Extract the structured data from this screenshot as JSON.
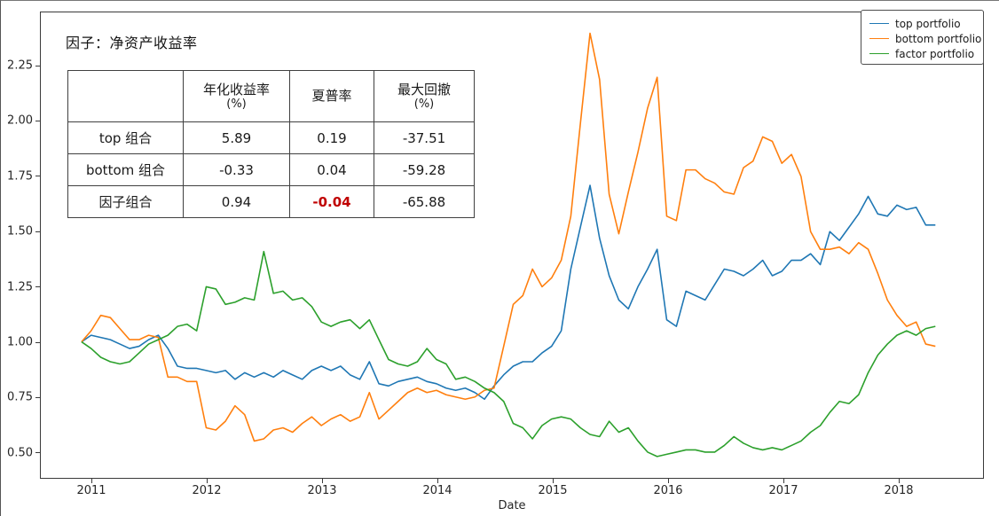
{
  "figure": {
    "title": "因子：净资产收益率",
    "colors": {
      "top_portfolio": "#1f77b4",
      "bottom_portfolio": "#ff7f0e",
      "factor_portfolio": "#2ca02c",
      "negative_highlight": "#c00000",
      "axis_text": "#262626",
      "spine": "#3a3a3a"
    }
  },
  "legend": {
    "items": [
      {
        "label": "top portfolio",
        "color": "#1f77b4"
      },
      {
        "label": "bottom portfolio",
        "color": "#ff7f0e"
      },
      {
        "label": "factor portfolio",
        "color": "#2ca02c"
      }
    ]
  },
  "stats_table": {
    "col_headers": [
      {
        "main": "",
        "sub": ""
      },
      {
        "main": "年化收益率",
        "sub": "(%)"
      },
      {
        "main": "夏普率",
        "sub": ""
      },
      {
        "main": "最大回撤",
        "sub": "(%)"
      }
    ],
    "rows": [
      {
        "label": "top 组合",
        "values": [
          "5.89",
          "0.19",
          "-37.51"
        ]
      },
      {
        "label": "bottom 组合",
        "values": [
          "-0.33",
          "0.04",
          "-59.28"
        ]
      },
      {
        "label": "因子组合",
        "values": [
          "0.94",
          "-0.04",
          "-65.88"
        ]
      }
    ],
    "highlight_cell": {
      "row": 2,
      "value_col": 1,
      "color": "#c00000"
    }
  },
  "chart_data": {
    "type": "line",
    "title": "因子：净资产收益率",
    "xlabel": "Date",
    "ylabel": "",
    "frequency": "monthly",
    "x_start": "2010-12",
    "x_end": "2018-05",
    "x_ticks": [
      "2011",
      "2012",
      "2013",
      "2014",
      "2015",
      "2016",
      "2017",
      "2018"
    ],
    "y_ticks": [
      "0.50",
      "0.75",
      "1.00",
      "1.25",
      "1.50",
      "1.75",
      "2.00",
      "2.25"
    ],
    "ylim": [
      0.384,
      2.496
    ],
    "grid": false,
    "legend_position": "upper right",
    "series": [
      {
        "name": "top portfolio",
        "color": "#1f77b4",
        "values": [
          1.0,
          1.03,
          1.02,
          1.01,
          0.99,
          0.97,
          0.98,
          1.01,
          1.03,
          0.97,
          0.89,
          0.88,
          0.88,
          0.87,
          0.86,
          0.87,
          0.83,
          0.86,
          0.84,
          0.86,
          0.84,
          0.87,
          0.85,
          0.83,
          0.87,
          0.89,
          0.87,
          0.89,
          0.85,
          0.83,
          0.91,
          0.81,
          0.8,
          0.82,
          0.83,
          0.84,
          0.82,
          0.81,
          0.79,
          0.78,
          0.79,
          0.77,
          0.74,
          0.8,
          0.85,
          0.89,
          0.91,
          0.91,
          0.95,
          0.98,
          1.05,
          1.33,
          1.52,
          1.71,
          1.47,
          1.3,
          1.19,
          1.15,
          1.25,
          1.33,
          1.42,
          1.1,
          1.07,
          1.23,
          1.21,
          1.19,
          1.26,
          1.33,
          1.32,
          1.3,
          1.33,
          1.37,
          1.3,
          1.32,
          1.37,
          1.37,
          1.4,
          1.35,
          1.5,
          1.46,
          1.52,
          1.58,
          1.66,
          1.58,
          1.57,
          1.62,
          1.6,
          1.61,
          1.53,
          1.53
        ]
      },
      {
        "name": "bottom portfolio",
        "color": "#ff7f0e",
        "values": [
          1.0,
          1.05,
          1.12,
          1.11,
          1.06,
          1.01,
          1.01,
          1.03,
          1.02,
          0.84,
          0.84,
          0.82,
          0.82,
          0.61,
          0.6,
          0.64,
          0.71,
          0.67,
          0.55,
          0.56,
          0.6,
          0.61,
          0.59,
          0.63,
          0.66,
          0.62,
          0.65,
          0.67,
          0.64,
          0.66,
          0.77,
          0.65,
          0.69,
          0.73,
          0.77,
          0.79,
          0.77,
          0.78,
          0.76,
          0.75,
          0.74,
          0.75,
          0.78,
          0.79,
          0.98,
          1.17,
          1.21,
          1.33,
          1.25,
          1.29,
          1.37,
          1.57,
          1.99,
          2.4,
          2.19,
          1.67,
          1.49,
          1.68,
          1.86,
          2.06,
          2.2,
          1.57,
          1.55,
          1.78,
          1.78,
          1.74,
          1.72,
          1.68,
          1.67,
          1.79,
          1.82,
          1.93,
          1.91,
          1.81,
          1.85,
          1.75,
          1.5,
          1.42,
          1.42,
          1.43,
          1.4,
          1.45,
          1.42,
          1.31,
          1.19,
          1.12,
          1.07,
          1.09,
          0.99,
          0.98
        ]
      },
      {
        "name": "factor portfolio",
        "color": "#2ca02c",
        "values": [
          1.0,
          0.97,
          0.93,
          0.91,
          0.9,
          0.91,
          0.95,
          0.99,
          1.01,
          1.03,
          1.07,
          1.08,
          1.05,
          1.25,
          1.24,
          1.17,
          1.18,
          1.2,
          1.19,
          1.41,
          1.22,
          1.23,
          1.19,
          1.2,
          1.16,
          1.09,
          1.07,
          1.09,
          1.1,
          1.06,
          1.1,
          1.01,
          0.92,
          0.9,
          0.89,
          0.91,
          0.97,
          0.92,
          0.9,
          0.83,
          0.84,
          0.82,
          0.79,
          0.77,
          0.73,
          0.63,
          0.61,
          0.56,
          0.62,
          0.65,
          0.66,
          0.65,
          0.61,
          0.58,
          0.57,
          0.64,
          0.59,
          0.61,
          0.55,
          0.5,
          0.48,
          0.49,
          0.5,
          0.51,
          0.51,
          0.5,
          0.5,
          0.53,
          0.57,
          0.54,
          0.52,
          0.51,
          0.52,
          0.51,
          0.53,
          0.55,
          0.59,
          0.62,
          0.68,
          0.73,
          0.72,
          0.76,
          0.86,
          0.94,
          0.99,
          1.03,
          1.05,
          1.03,
          1.06,
          1.07
        ]
      }
    ]
  },
  "axis": {
    "xlabel": "Date"
  }
}
